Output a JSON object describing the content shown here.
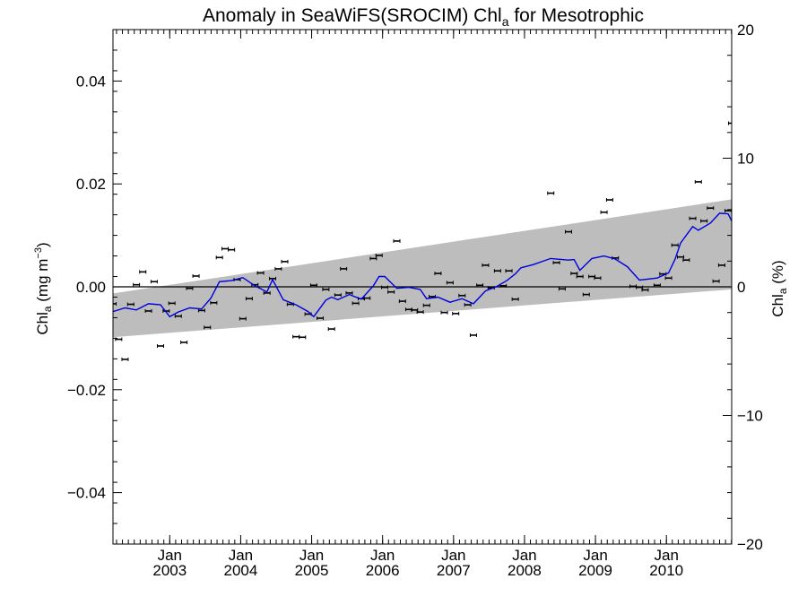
{
  "chart_data": {
    "type": "line",
    "title": "Anomaly in SeaWiFS(SROCIM) Chl",
    "title_subscript": "a",
    "title_suffix": " for Mesotrophic",
    "ylabel_left": {
      "base": "Chl",
      "sub": "a",
      "rest": " (mg m",
      "sup": "−3",
      "end": ")"
    },
    "ylabel_right": {
      "base": "Chl",
      "sub": "a",
      "rest": " (%)"
    },
    "xlim": [
      2002.2,
      2010.92
    ],
    "ylim": [
      -0.05,
      0.05
    ],
    "ylim_right": [
      -20,
      20
    ],
    "y_ticks_left": [
      {
        "value": 0.04,
        "label": "0.04"
      },
      {
        "value": 0.02,
        "label": "0.02"
      },
      {
        "value": 0.0,
        "label": "0.00"
      },
      {
        "value": -0.02,
        "label": "−0.02"
      },
      {
        "value": -0.04,
        "label": "−0.04"
      }
    ],
    "y_ticks_right": [
      {
        "value": 20,
        "label": "20"
      },
      {
        "value": 10,
        "label": "10"
      },
      {
        "value": 0,
        "label": "0"
      },
      {
        "value": -10,
        "label": "−10"
      },
      {
        "value": -20,
        "label": "−20"
      }
    ],
    "x_ticks": [
      {
        "value": 2003.0,
        "month": "Jan",
        "year": "2003"
      },
      {
        "value": 2004.0,
        "month": "Jan",
        "year": "2004"
      },
      {
        "value": 2005.0,
        "month": "Jan",
        "year": "2005"
      },
      {
        "value": 2006.0,
        "month": "Jan",
        "year": "2006"
      },
      {
        "value": 2007.0,
        "month": "Jan",
        "year": "2007"
      },
      {
        "value": 2008.0,
        "month": "Jan",
        "year": "2008"
      },
      {
        "value": 2009.0,
        "month": "Jan",
        "year": "2009"
      },
      {
        "value": 2010.0,
        "month": "Jan",
        "year": "2010"
      }
    ],
    "trend_band": {
      "x": [
        2002.2,
        2010.92
      ],
      "lower": [
        -0.0098,
        -0.0005
      ],
      "upper": [
        -0.0013,
        0.017
      ]
    },
    "zero_line": 0,
    "series": [
      {
        "kind": "points",
        "color": "#000000",
        "points": [
          [
            2002.2,
            -0.0033
          ],
          [
            2002.28,
            -0.0102
          ],
          [
            2002.37,
            -0.0141
          ],
          [
            2002.45,
            -0.0034
          ],
          [
            2002.53,
            0.0004
          ],
          [
            2002.62,
            0.0029
          ],
          [
            2002.7,
            -0.0047
          ],
          [
            2002.78,
            0.001
          ],
          [
            2002.87,
            -0.0115
          ],
          [
            2002.95,
            -0.0047
          ],
          [
            2003.03,
            -0.0032
          ],
          [
            2003.12,
            -0.0057
          ],
          [
            2003.2,
            -0.0108
          ],
          [
            2003.28,
            -0.0003
          ],
          [
            2003.37,
            0.0021
          ],
          [
            2003.45,
            -0.0046
          ],
          [
            2003.53,
            -0.0079
          ],
          [
            2003.62,
            -0.0031
          ],
          [
            2003.7,
            0.0057
          ],
          [
            2003.78,
            0.0074
          ],
          [
            2003.87,
            0.0072
          ],
          [
            2003.95,
            0.0014
          ],
          [
            2004.03,
            -0.0062
          ],
          [
            2004.12,
            -0.0023
          ],
          [
            2004.2,
            0.0004
          ],
          [
            2004.28,
            0.0027
          ],
          [
            2004.37,
            -0.0012
          ],
          [
            2004.45,
            0.0016
          ],
          [
            2004.53,
            0.0035
          ],
          [
            2004.62,
            0.0049
          ],
          [
            2004.7,
            -0.0034
          ],
          [
            2004.78,
            -0.0097
          ],
          [
            2004.87,
            -0.0098
          ],
          [
            2004.95,
            -0.0053
          ],
          [
            2005.03,
            0.0003
          ],
          [
            2005.12,
            -0.0061
          ],
          [
            2005.2,
            -0.0005
          ],
          [
            2005.28,
            -0.0082
          ],
          [
            2005.37,
            -0.0016
          ],
          [
            2005.45,
            0.0035
          ],
          [
            2005.53,
            -0.0012
          ],
          [
            2005.62,
            -0.0032
          ],
          [
            2005.7,
            -0.0023
          ],
          [
            2005.78,
            -0.0022
          ],
          [
            2005.87,
            0.0055
          ],
          [
            2005.95,
            0.0061
          ],
          [
            2006.03,
            -0.0001
          ],
          [
            2006.12,
            -0.001
          ],
          [
            2006.2,
            0.0089
          ],
          [
            2006.28,
            -0.0028
          ],
          [
            2006.37,
            -0.0044
          ],
          [
            2006.45,
            -0.0045
          ],
          [
            2006.53,
            -0.0049
          ],
          [
            2006.62,
            -0.0036
          ],
          [
            2006.7,
            -0.0019
          ],
          [
            2006.78,
            0.0026
          ],
          [
            2006.87,
            -0.005
          ],
          [
            2006.95,
            0.0008
          ],
          [
            2007.03,
            -0.0052
          ],
          [
            2007.12,
            -0.0017
          ],
          [
            2007.2,
            -0.0035
          ],
          [
            2007.28,
            -0.0094
          ],
          [
            2007.37,
            0.0003
          ],
          [
            2007.45,
            0.0042
          ],
          [
            2007.53,
            -0.0002
          ],
          [
            2007.62,
            0.0031
          ],
          [
            2007.7,
            0.0002
          ],
          [
            2007.78,
            0.0031
          ],
          [
            2007.87,
            -0.0024
          ],
          [
            2008.37,
            0.0182
          ],
          [
            2008.45,
            0.0047
          ],
          [
            2008.53,
            -0.0004
          ],
          [
            2008.62,
            0.0107
          ],
          [
            2008.7,
            0.0026
          ],
          [
            2008.78,
            0.002
          ],
          [
            2008.87,
            -0.0015
          ],
          [
            2008.95,
            0.002
          ],
          [
            2009.03,
            0.0017
          ],
          [
            2009.12,
            0.0145
          ],
          [
            2009.2,
            0.0169
          ],
          [
            2009.28,
            0.0056
          ],
          [
            2009.53,
            0.0001
          ],
          [
            2009.62,
            -0.0001
          ],
          [
            2009.7,
            -0.0006
          ],
          [
            2009.87,
            0.0003
          ],
          [
            2009.95,
            0.0025
          ],
          [
            2010.03,
            0.0017
          ],
          [
            2010.12,
            0.0081
          ],
          [
            2010.2,
            0.0058
          ],
          [
            2010.28,
            0.0052
          ],
          [
            2010.37,
            0.0133
          ],
          [
            2010.45,
            0.0204
          ],
          [
            2010.53,
            0.0128
          ],
          [
            2010.62,
            0.0153
          ],
          [
            2010.7,
            0.0011
          ],
          [
            2010.78,
            0.0042
          ],
          [
            2010.87,
            0.0148
          ],
          [
            2010.92,
            0.0318
          ]
        ]
      },
      {
        "kind": "line",
        "color": "#0000dd",
        "points": [
          [
            2002.2,
            -0.0048
          ],
          [
            2002.37,
            -0.0041
          ],
          [
            2002.53,
            -0.0045
          ],
          [
            2002.7,
            -0.0033
          ],
          [
            2002.87,
            -0.0035
          ],
          [
            2003.0,
            -0.0058
          ],
          [
            2003.12,
            -0.0049
          ],
          [
            2003.28,
            -0.0041
          ],
          [
            2003.45,
            -0.0043
          ],
          [
            2003.58,
            -0.0022
          ],
          [
            2003.7,
            0.001
          ],
          [
            2003.87,
            0.0012
          ],
          [
            2004.03,
            0.0018
          ],
          [
            2004.2,
            0.0002
          ],
          [
            2004.37,
            -0.001
          ],
          [
            2004.45,
            0.0014
          ],
          [
            2004.6,
            -0.0025
          ],
          [
            2004.78,
            -0.0035
          ],
          [
            2004.95,
            -0.0048
          ],
          [
            2005.03,
            -0.0058
          ],
          [
            2005.2,
            -0.0026
          ],
          [
            2005.28,
            -0.002
          ],
          [
            2005.37,
            -0.0025
          ],
          [
            2005.53,
            -0.0015
          ],
          [
            2005.7,
            -0.0024
          ],
          [
            2005.87,
            0.0002
          ],
          [
            2005.95,
            0.002
          ],
          [
            2006.03,
            0.002
          ],
          [
            2006.2,
            -0.0003
          ],
          [
            2006.37,
            -0.0001
          ],
          [
            2006.53,
            -0.0005
          ],
          [
            2006.62,
            -0.0023
          ],
          [
            2006.78,
            -0.002
          ],
          [
            2006.95,
            -0.003
          ],
          [
            2007.12,
            -0.0023
          ],
          [
            2007.28,
            -0.0033
          ],
          [
            2007.45,
            -0.0008
          ],
          [
            2007.6,
            0.0
          ],
          [
            2007.75,
            0.0012
          ],
          [
            2007.87,
            0.0025
          ],
          [
            2007.95,
            0.0037
          ],
          [
            2008.12,
            0.0043
          ],
          [
            2008.37,
            0.0055
          ],
          [
            2008.62,
            0.0052
          ],
          [
            2008.7,
            0.0053
          ],
          [
            2008.78,
            0.0032
          ],
          [
            2008.95,
            0.0055
          ],
          [
            2009.12,
            0.006
          ],
          [
            2009.28,
            0.0054
          ],
          [
            2009.45,
            0.0039
          ],
          [
            2009.62,
            0.0013
          ],
          [
            2009.87,
            0.0017
          ],
          [
            2010.03,
            0.0027
          ],
          [
            2010.12,
            0.0053
          ],
          [
            2010.2,
            0.0085
          ],
          [
            2010.37,
            0.0117
          ],
          [
            2010.45,
            0.011
          ],
          [
            2010.62,
            0.0124
          ],
          [
            2010.75,
            0.0143
          ],
          [
            2010.87,
            0.0142
          ],
          [
            2010.92,
            0.0128
          ]
        ]
      }
    ]
  }
}
